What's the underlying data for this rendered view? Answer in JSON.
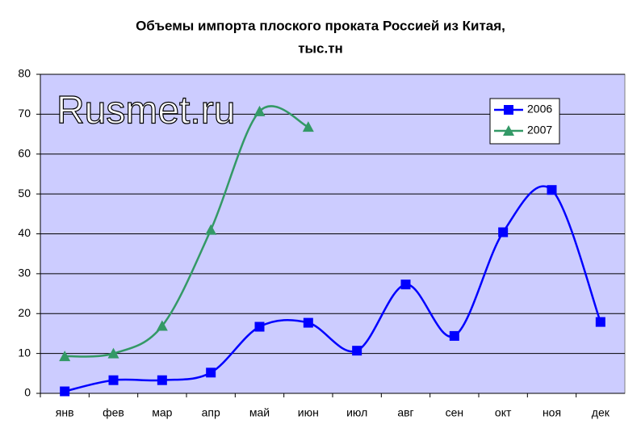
{
  "chart_data": {
    "type": "line",
    "title": "Объемы импорта плоского проката Россией из Китая,",
    "subtitle": "тыс.тн",
    "watermark": "Rusmet.ru",
    "categories": [
      "янв",
      "фев",
      "мар",
      "апр",
      "май",
      "июн",
      "июл",
      "авг",
      "сен",
      "окт",
      "ноя",
      "дек"
    ],
    "series": [
      {
        "name": "2006",
        "color": "#0000ff",
        "marker": "square",
        "values": [
          0.5,
          3.3,
          3.3,
          5.2,
          16.7,
          17.7,
          10.7,
          27.3,
          14.4,
          40.4,
          51,
          17.9
        ]
      },
      {
        "name": "2007",
        "color": "#339966",
        "marker": "triangle",
        "values": [
          9.3,
          10,
          16.9,
          41,
          70.7,
          66.8,
          null,
          null,
          null,
          null,
          null,
          null
        ]
      }
    ],
    "ylim": [
      0,
      80
    ],
    "yticks": [
      0,
      10,
      20,
      30,
      40,
      50,
      60,
      70,
      80
    ],
    "grid": true,
    "smooth": true,
    "legend": "top-right"
  }
}
